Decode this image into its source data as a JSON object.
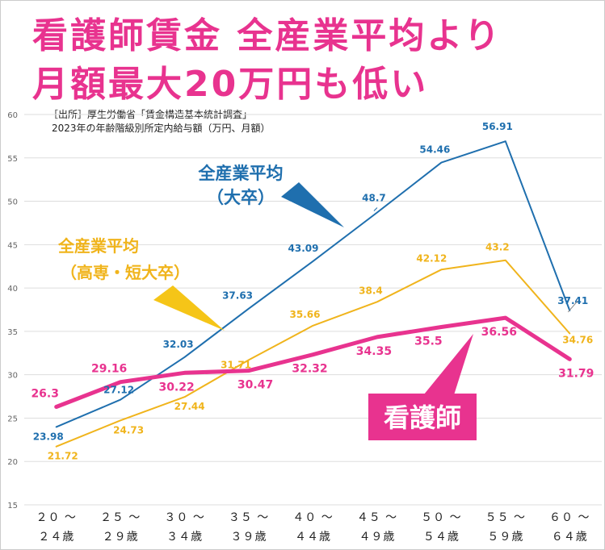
{
  "title_line1": "看護師賃金 全産業平均より",
  "title_line2": "月額最大20万円も低い",
  "source_line1": "［出所］厚生労働省「賃金構造基本統計調査」",
  "source_line2": "2023年の年齢階級別所定内給与額（万円、月額）",
  "colors": {
    "title": "#e8338f",
    "univ": "#1f6fae",
    "college": "#f0b41c",
    "nurse": "#e8338f",
    "grid": "#dddddd",
    "univ_arrow": "#1f6fae",
    "college_arrow": "#f5c518"
  },
  "chart_data": {
    "type": "line",
    "categories": [
      [
        "２０ ～",
        "２４歳"
      ],
      [
        "２５ ～",
        "２９歳"
      ],
      [
        "３０ ～",
        "３４歳"
      ],
      [
        "３５ ～",
        "３９歳"
      ],
      [
        "４０ ～",
        "４４歳"
      ],
      [
        "４５ ～",
        "４９歳"
      ],
      [
        "５０ ～",
        "５４歳"
      ],
      [
        "５５ ～",
        "５９歳"
      ],
      [
        "６０ ～",
        "６４歳"
      ]
    ],
    "ylim": [
      15,
      60
    ],
    "yticks": [
      15,
      20,
      25,
      30,
      35,
      40,
      45,
      50,
      55,
      60
    ],
    "series": [
      {
        "key": "univ",
        "name": "全産業平均（大卒）",
        "values": [
          23.98,
          27.12,
          32.03,
          37.63,
          43.09,
          48.7,
          54.46,
          56.91,
          37.41
        ]
      },
      {
        "key": "college",
        "name": "全産業平均（高専・短大卒）",
        "values": [
          21.72,
          24.73,
          27.44,
          31.71,
          35.66,
          38.4,
          42.12,
          43.2,
          34.76
        ]
      },
      {
        "key": "nurse",
        "name": "看護師",
        "values": [
          26.3,
          29.16,
          30.22,
          30.47,
          32.32,
          34.35,
          35.5,
          36.56,
          31.79
        ]
      }
    ],
    "data_labels": {
      "univ": [
        "23.98",
        "27.12",
        "32.03",
        "37.63",
        "43.09",
        "48.7",
        "54.46",
        "56.91",
        "37.41"
      ],
      "college": [
        "21.72",
        "24.73",
        "27.44",
        "31.71",
        "35.66",
        "38.4",
        "42.12",
        "43.2",
        "34.76"
      ],
      "nurse": [
        "26.3",
        "29.16",
        "30.22",
        "30.47",
        "32.32",
        "34.35",
        "35.5",
        "36.56",
        "31.79"
      ]
    },
    "annotations": {
      "univ": [
        "全産業平均",
        "（大卒）"
      ],
      "college": [
        "全産業平均",
        "（高専・短大卒）"
      ],
      "nurse": "看護師"
    },
    "grid": true,
    "legend": "none (inline callouts)"
  }
}
